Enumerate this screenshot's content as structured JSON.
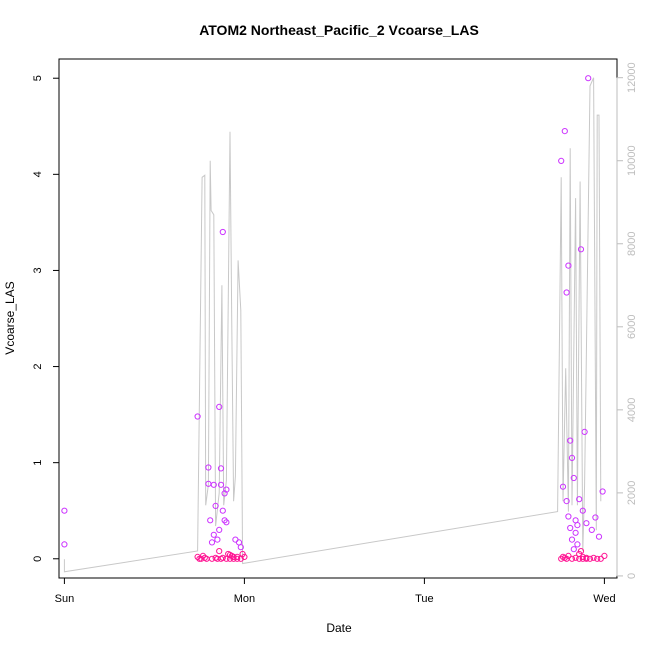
{
  "chart_data": {
    "type": "scatter",
    "title": "ATOM2 Northeast_Pacific_2 Vcoarse_LAS",
    "xlabel": "Date",
    "ylabel": "Vcoarse_LAS",
    "x_ticks": [
      "Sun",
      "Mon",
      "Tue",
      "Wed"
    ],
    "y_ticks": [
      "0",
      "1",
      "2",
      "3",
      "4",
      "5"
    ],
    "y_right_ticks": [
      "0",
      "2000",
      "4000",
      "6000",
      "8000",
      "10000",
      "12000"
    ],
    "xlim": [
      -0.03,
      3.07
    ],
    "ylim": [
      -0.2,
      5.2
    ],
    "y_right_lim": [
      -50,
      12450
    ],
    "grid": false,
    "colors": {
      "points_low_altitude": "#ff1493",
      "points_high_altitude": "#cc33ff",
      "altitude_line": "#c8c8c8",
      "right_axis": "#bdbdbd"
    },
    "series": [
      {
        "values": [
          [
            0.0,
            0.5
          ],
          [
            0.0,
            0.15
          ],
          [
            0.74,
            1.48
          ],
          [
            0.74,
            0.02
          ],
          [
            0.76,
            0.0
          ],
          [
            0.77,
            0.03
          ],
          [
            0.78,
            0.01
          ],
          [
            0.8,
            0.95
          ],
          [
            0.8,
            0.78
          ],
          [
            0.81,
            0.4
          ],
          [
            0.82,
            0.17
          ],
          [
            0.83,
            0.25
          ],
          [
            0.83,
            0.77
          ],
          [
            0.84,
            0.55
          ],
          [
            0.85,
            0.2
          ],
          [
            0.86,
            0.3
          ],
          [
            0.86,
            1.58
          ],
          [
            0.86,
            0.08
          ],
          [
            0.87,
            0.94
          ],
          [
            0.87,
            0.77
          ],
          [
            0.88,
            3.4
          ],
          [
            0.88,
            0.5
          ],
          [
            0.89,
            0.4
          ],
          [
            0.89,
            0.68
          ],
          [
            0.9,
            0.72
          ],
          [
            0.9,
            0.38
          ],
          [
            0.91,
            0.05
          ],
          [
            0.92,
            0.04
          ],
          [
            0.93,
            0.03
          ],
          [
            0.94,
            0.02
          ],
          [
            0.95,
            0.2
          ],
          [
            0.96,
            0.02
          ],
          [
            0.97,
            0.17
          ],
          [
            0.98,
            0.12
          ],
          [
            0.99,
            0.05
          ],
          [
            0.75,
            0.0
          ],
          [
            0.79,
            0.0
          ],
          [
            0.82,
            0.0
          ],
          [
            0.84,
            0.01
          ],
          [
            0.85,
            0.0
          ],
          [
            0.87,
            0.0
          ],
          [
            0.88,
            0.01
          ],
          [
            0.9,
            0.0
          ],
          [
            0.92,
            0.0
          ],
          [
            0.94,
            0.0
          ],
          [
            0.96,
            0.0
          ],
          [
            0.98,
            0.0
          ],
          [
            1.0,
            0.02
          ],
          [
            2.76,
            4.14
          ],
          [
            2.78,
            4.45
          ],
          [
            2.79,
            2.77
          ],
          [
            2.8,
            3.05
          ],
          [
            2.81,
            1.23
          ],
          [
            2.82,
            1.05
          ],
          [
            2.83,
            0.84
          ],
          [
            2.84,
            0.27
          ],
          [
            2.85,
            0.35
          ],
          [
            2.86,
            0.62
          ],
          [
            2.87,
            3.22
          ],
          [
            2.88,
            0.5
          ],
          [
            2.89,
            1.32
          ],
          [
            2.9,
            0.37
          ],
          [
            2.91,
            5.0
          ],
          [
            2.93,
            0.3
          ],
          [
            2.95,
            0.43
          ],
          [
            2.97,
            0.23
          ],
          [
            2.99,
            0.7
          ],
          [
            3.0,
            0.03
          ],
          [
            2.77,
            0.75
          ],
          [
            2.79,
            0.6
          ],
          [
            2.8,
            0.44
          ],
          [
            2.81,
            0.32
          ],
          [
            2.82,
            0.2
          ],
          [
            2.83,
            0.1
          ],
          [
            2.84,
            0.4
          ],
          [
            2.85,
            0.15
          ],
          [
            2.86,
            0.05
          ],
          [
            2.87,
            0.08
          ],
          [
            2.88,
            0.02
          ],
          [
            2.9,
            0.01
          ],
          [
            2.76,
            0.0
          ],
          [
            2.77,
            0.02
          ],
          [
            2.78,
            0.01
          ],
          [
            2.79,
            0.0
          ],
          [
            2.8,
            0.03
          ],
          [
            2.82,
            0.0
          ],
          [
            2.84,
            0.01
          ],
          [
            2.86,
            0.0
          ],
          [
            2.88,
            0.0
          ],
          [
            2.9,
            0.0
          ],
          [
            2.92,
            0.0
          ],
          [
            2.94,
            0.01
          ],
          [
            2.96,
            0.0
          ],
          [
            2.98,
            0.0
          ]
        ]
      },
      {
        "axis": "right",
        "values": [
          [
            0.0,
            400
          ],
          [
            0.0,
            100
          ],
          [
            0.74,
            600
          ],
          [
            0.765,
            9600
          ],
          [
            0.78,
            9650
          ],
          [
            0.785,
            1700
          ],
          [
            0.8,
            2200
          ],
          [
            0.81,
            10000
          ],
          [
            0.815,
            8800
          ],
          [
            0.83,
            8700
          ],
          [
            0.84,
            1200
          ],
          [
            0.86,
            2000
          ],
          [
            0.875,
            7000
          ],
          [
            0.885,
            1700
          ],
          [
            0.9,
            2300
          ],
          [
            0.92,
            10700
          ],
          [
            0.93,
            6000
          ],
          [
            0.94,
            1800
          ],
          [
            0.95,
            2400
          ],
          [
            0.965,
            7600
          ],
          [
            0.98,
            6400
          ],
          [
            0.99,
            300
          ],
          [
            2.74,
            1550
          ],
          [
            2.76,
            9600
          ],
          [
            2.77,
            1800
          ],
          [
            2.785,
            5000
          ],
          [
            2.8,
            1550
          ],
          [
            2.81,
            10300
          ],
          [
            2.82,
            1700
          ],
          [
            2.84,
            9100
          ],
          [
            2.85,
            1700
          ],
          [
            2.865,
            9500
          ],
          [
            2.88,
            600
          ],
          [
            2.89,
            2200
          ],
          [
            2.92,
            11800
          ],
          [
            2.94,
            12000
          ],
          [
            2.955,
            1100
          ],
          [
            2.96,
            11100
          ],
          [
            2.97,
            11100
          ],
          [
            2.98,
            1800
          ]
        ]
      }
    ]
  }
}
